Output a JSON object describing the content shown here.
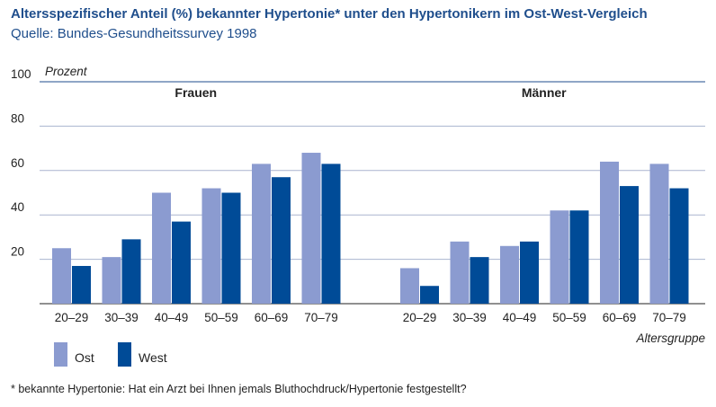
{
  "header": {
    "title": "Altersspezifischer Anteil (%) bekannter Hypertonie* unter den Hypertonikern im Ost-West-Vergleich",
    "subtitle": "Quelle: Bundes-Gesundheitssurvey 1998"
  },
  "footnote": "* bekannte Hypertonie: Hat ein Arzt bei Ihnen jemals Bluthochdruck/Hypertonie festgestellt?",
  "colors": {
    "ost": "#8b9bd0",
    "west": "#004b97",
    "axis": "#1f4e8c",
    "grid": "#aab4cf",
    "text": "#222222"
  },
  "chart_data": {
    "type": "bar",
    "ylabel": "Prozent",
    "xlabel": "Altersgruppe",
    "ylim": [
      0,
      100
    ],
    "yticks": [
      20,
      40,
      60,
      80,
      100
    ],
    "grid": true,
    "legend": {
      "position": "bottom-left",
      "entries": [
        "Ost",
        "West"
      ]
    },
    "panels": [
      {
        "name": "Frauen",
        "categories": [
          "20–29",
          "30–39",
          "40–49",
          "50–59",
          "60–69",
          "70–79"
        ],
        "series": [
          {
            "name": "Ost",
            "values": [
              25,
              21,
              50,
              52,
              63,
              68
            ]
          },
          {
            "name": "West",
            "values": [
              17,
              29,
              37,
              50,
              57,
              63
            ]
          }
        ]
      },
      {
        "name": "Männer",
        "categories": [
          "20–29",
          "30–39",
          "40–49",
          "50–59",
          "60–69",
          "70–79"
        ],
        "series": [
          {
            "name": "Ost",
            "values": [
              16,
              28,
              26,
              42,
              64,
              63
            ]
          },
          {
            "name": "West",
            "values": [
              8,
              21,
              28,
              42,
              53,
              52
            ]
          }
        ]
      }
    ]
  }
}
